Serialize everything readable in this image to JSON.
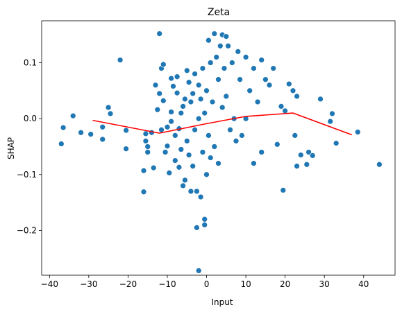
{
  "chart_data": {
    "type": "scatter",
    "title": "Zeta",
    "xlabel": "Input",
    "ylabel": "SHAP",
    "xlim": [
      -42,
      48
    ],
    "ylim": [
      -0.28,
      0.175
    ],
    "xticks": [
      -40,
      -30,
      -20,
      -10,
      0,
      10,
      20,
      30,
      40
    ],
    "xtick_labels": [
      "−40",
      "−30",
      "−20",
      "−10",
      "0",
      "10",
      "20",
      "30",
      "40"
    ],
    "yticks": [
      -0.2,
      -0.1,
      0.0,
      0.1
    ],
    "ytick_labels": [
      "−0.2",
      "−0.1",
      "0.0",
      "0.1"
    ],
    "grid": false,
    "legend": "none",
    "colors": {
      "points": "#1f77b4",
      "point_edge": "#ffffff",
      "line": "#ff0000"
    },
    "series": [
      {
        "type": "scatter",
        "points": [
          [
            -37,
            -0.045
          ],
          [
            -36.5,
            -0.016
          ],
          [
            -34,
            0.005
          ],
          [
            -32,
            -0.025
          ],
          [
            -29.5,
            -0.028
          ],
          [
            -26.5,
            -0.015
          ],
          [
            -26.5,
            -0.037
          ],
          [
            -25,
            0.02
          ],
          [
            -24.5,
            0.009
          ],
          [
            -22,
            0.105
          ],
          [
            -20.5,
            -0.021
          ],
          [
            -20.5,
            -0.054
          ],
          [
            -16,
            -0.131
          ],
          [
            -16,
            -0.093
          ],
          [
            -15.5,
            -0.04
          ],
          [
            -15.5,
            -0.027
          ],
          [
            -15,
            -0.05
          ],
          [
            -15,
            -0.06
          ],
          [
            -14,
            -0.025
          ],
          [
            -13.5,
            -0.088
          ],
          [
            -13,
            0.06
          ],
          [
            -12.5,
            0.016
          ],
          [
            -12,
            0.152
          ],
          [
            -12,
            0.045
          ],
          [
            -11.5,
            0.09
          ],
          [
            -11.5,
            -0.02
          ],
          [
            -11,
            0.097
          ],
          [
            -11,
            0.032
          ],
          [
            -10.5,
            -0.06
          ],
          [
            -10,
            -0.015
          ],
          [
            -10,
            -0.049
          ],
          [
            -9.5,
            -0.097
          ],
          [
            -9,
            0.012
          ],
          [
            -9,
            -0.005
          ],
          [
            -9,
            0.072
          ],
          [
            -8.5,
            0.058
          ],
          [
            -8,
            -0.03
          ],
          [
            -8,
            -0.075
          ],
          [
            -7.5,
            0.046
          ],
          [
            -7.5,
            0.075
          ],
          [
            -7,
            -0.087
          ],
          [
            -7,
            -0.018
          ],
          [
            -6.5,
            0.01
          ],
          [
            -6.5,
            -0.055
          ],
          [
            -6,
            -0.12
          ],
          [
            -6,
            0.022
          ],
          [
            -5.5,
            -0.11
          ],
          [
            -5.5,
            0.035
          ],
          [
            -5,
            -0.04
          ],
          [
            -5,
            0.086
          ],
          [
            -4.5,
            -0.065
          ],
          [
            -4.5,
            0.065
          ],
          [
            -4,
            -0.13
          ],
          [
            -4,
            0.03
          ],
          [
            -3.5,
            -0.085
          ],
          [
            -3.5,
            0.045
          ],
          [
            -3,
            -0.02
          ],
          [
            -3,
            0.08
          ],
          [
            -2.5,
            -0.13
          ],
          [
            -2.5,
            -0.195
          ],
          [
            -2,
            0.0
          ],
          [
            -2,
            0.06
          ],
          [
            -2,
            -0.272
          ],
          [
            -1.5,
            -0.14
          ],
          [
            -1.5,
            0.035
          ],
          [
            -1,
            -0.06
          ],
          [
            -1,
            0.09
          ],
          [
            -0.5,
            -0.18
          ],
          [
            -0.5,
            -0.19
          ],
          [
            -0.5,
            0.01
          ],
          [
            0,
            -0.1
          ],
          [
            0,
            0.05
          ],
          [
            0.5,
            -0.03
          ],
          [
            0.5,
            0.14
          ],
          [
            1,
            -0.07
          ],
          [
            1,
            0.1
          ],
          [
            1.5,
            0.03
          ],
          [
            2,
            0.152
          ],
          [
            2,
            -0.05
          ],
          [
            2.5,
            0.11
          ],
          [
            3,
            0.07
          ],
          [
            3,
            -0.08
          ],
          [
            3.5,
            0.13
          ],
          [
            4,
            0.15
          ],
          [
            4,
            0.02
          ],
          [
            4.5,
            0.09
          ],
          [
            5,
            0.147
          ],
          [
            5,
            0.04
          ],
          [
            5.5,
            0.13
          ],
          [
            6,
            -0.02
          ],
          [
            6.5,
            0.1
          ],
          [
            7,
            0.0
          ],
          [
            7.5,
            -0.04
          ],
          [
            8,
            0.12
          ],
          [
            8.5,
            0.07
          ],
          [
            9,
            -0.03
          ],
          [
            10,
            0.11
          ],
          [
            10,
            0.0
          ],
          [
            11,
            0.05
          ],
          [
            12,
            0.09
          ],
          [
            12,
            -0.08
          ],
          [
            13,
            0.03
          ],
          [
            14,
            0.105
          ],
          [
            14,
            -0.06
          ],
          [
            15,
            0.07
          ],
          [
            16,
            0.06
          ],
          [
            17,
            0.09
          ],
          [
            18,
            -0.046
          ],
          [
            19,
            0.022
          ],
          [
            19.5,
            -0.128
          ],
          [
            20,
            0.014
          ],
          [
            21,
            0.062
          ],
          [
            22,
            0.05
          ],
          [
            22.5,
            -0.03
          ],
          [
            23,
            0.04
          ],
          [
            23,
            -0.085
          ],
          [
            24,
            -0.065
          ],
          [
            25.5,
            -0.082
          ],
          [
            26,
            -0.06
          ],
          [
            27,
            -0.066
          ],
          [
            29,
            0.035
          ],
          [
            31.5,
            -0.005
          ],
          [
            32,
            0.009
          ],
          [
            33,
            -0.044
          ],
          [
            38.5,
            -0.024
          ],
          [
            44,
            -0.082
          ]
        ]
      },
      {
        "type": "line",
        "points": [
          [
            -29,
            -0.003
          ],
          [
            -12,
            -0.026
          ],
          [
            0,
            -0.009
          ],
          [
            10,
            0.004
          ],
          [
            22,
            0.01
          ],
          [
            37,
            -0.029
          ]
        ]
      }
    ]
  }
}
